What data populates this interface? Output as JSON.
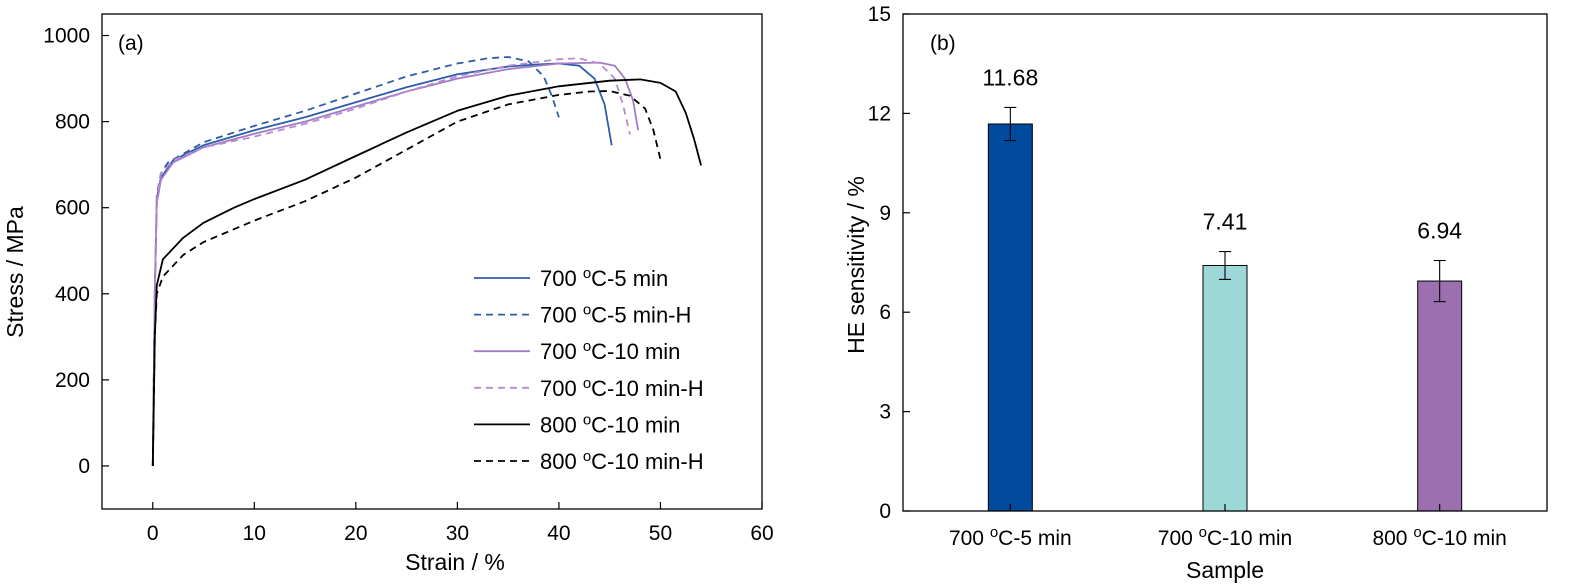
{
  "chart_data": [
    {
      "type": "line",
      "panel_label": "(a)",
      "xlabel": "Strain / %",
      "ylabel": "Stress / MPa",
      "xlim": [
        -5,
        60
      ],
      "ylim": [
        -100,
        1050
      ],
      "xticks": [
        "0",
        "10",
        "20",
        "30",
        "40",
        "50",
        "60"
      ],
      "yticks": [
        "0",
        "200",
        "400",
        "600",
        "800",
        "1000"
      ],
      "legend_position": "lower-right",
      "series": [
        {
          "name": "700 °C-5 min",
          "sup": "o",
          "pre": "700 ",
          "post": "C-5 min",
          "color": "#2e5ca8",
          "dash": "solid",
          "points": [
            [
              0,
              0
            ],
            [
              0.2,
              400
            ],
            [
              0.4,
              620
            ],
            [
              0.8,
              670
            ],
            [
              2,
              710
            ],
            [
              5,
              745
            ],
            [
              10,
              780
            ],
            [
              15,
              810
            ],
            [
              20,
              845
            ],
            [
              25,
              880
            ],
            [
              30,
              910
            ],
            [
              35,
              928
            ],
            [
              38,
              933
            ],
            [
              40,
              935
            ],
            [
              42,
              930
            ],
            [
              43.5,
              900
            ],
            [
              44.5,
              840
            ],
            [
              45.2,
              745
            ]
          ]
        },
        {
          "name": "700 °C-5 min-H",
          "sup": "o",
          "pre": "700 ",
          "post": "C-5 min-H",
          "color": "#2e5ca8",
          "dash": "dashed",
          "points": [
            [
              0,
              0
            ],
            [
              0.2,
              400
            ],
            [
              0.4,
              630
            ],
            [
              0.8,
              680
            ],
            [
              1.5,
              705
            ],
            [
              5,
              752
            ],
            [
              10,
              790
            ],
            [
              15,
              825
            ],
            [
              20,
              865
            ],
            [
              25,
              905
            ],
            [
              30,
              935
            ],
            [
              33,
              947
            ],
            [
              35,
              950
            ],
            [
              37,
              940
            ],
            [
              38.5,
              905
            ],
            [
              39.3,
              860
            ],
            [
              40,
              810
            ]
          ]
        },
        {
          "name": "700 °C-10 min",
          "sup": "o",
          "pre": "700 ",
          "post": "C-10 min",
          "color": "#a07cc5",
          "dash": "solid",
          "points": [
            [
              0,
              0
            ],
            [
              0.2,
              400
            ],
            [
              0.4,
              610
            ],
            [
              0.8,
              665
            ],
            [
              2,
              705
            ],
            [
              5,
              740
            ],
            [
              10,
              772
            ],
            [
              15,
              800
            ],
            [
              20,
              835
            ],
            [
              25,
              870
            ],
            [
              30,
              900
            ],
            [
              35,
              922
            ],
            [
              40,
              935
            ],
            [
              44,
              937
            ],
            [
              45.5,
              930
            ],
            [
              46.5,
              900
            ],
            [
              47.3,
              850
            ],
            [
              47.8,
              780
            ]
          ]
        },
        {
          "name": "700 °C-10 min-H",
          "sup": "o",
          "pre": "700 ",
          "post": "C-10 min-H",
          "color": "#b98ad4",
          "dash": "dashed",
          "points": [
            [
              0,
              0
            ],
            [
              0.2,
              400
            ],
            [
              0.4,
              620
            ],
            [
              0.8,
              680
            ],
            [
              2,
              710
            ],
            [
              5,
              740
            ],
            [
              10,
              765
            ],
            [
              15,
              795
            ],
            [
              20,
              830
            ],
            [
              25,
              870
            ],
            [
              30,
              905
            ],
            [
              35,
              930
            ],
            [
              40,
              945
            ],
            [
              42,
              947
            ],
            [
              44,
              935
            ],
            [
              45.5,
              900
            ],
            [
              46.3,
              840
            ],
            [
              47,
              770
            ]
          ]
        },
        {
          "name": "800 °C-10 min",
          "sup": "o",
          "pre": "800 ",
          "post": "C-10 min",
          "color": "#000000",
          "dash": "solid",
          "points": [
            [
              0,
              0
            ],
            [
              0.2,
              300
            ],
            [
              0.4,
              420
            ],
            [
              1,
              480
            ],
            [
              3,
              530
            ],
            [
              5,
              565
            ],
            [
              8,
              600
            ],
            [
              10,
              620
            ],
            [
              15,
              665
            ],
            [
              20,
              720
            ],
            [
              25,
              775
            ],
            [
              30,
              825
            ],
            [
              35,
              860
            ],
            [
              40,
              882
            ],
            [
              45,
              895
            ],
            [
              48,
              898
            ],
            [
              50,
              890
            ],
            [
              51.5,
              870
            ],
            [
              52.5,
              820
            ],
            [
              53.3,
              760
            ],
            [
              54,
              698
            ]
          ]
        },
        {
          "name": "800 °C-10 min-H",
          "sup": "o",
          "pre": "800 ",
          "post": "C-10 min-H",
          "color": "#000000",
          "dash": "dashed",
          "points": [
            [
              0,
              0
            ],
            [
              0.2,
              300
            ],
            [
              0.4,
              400
            ],
            [
              1,
              440
            ],
            [
              3,
              490
            ],
            [
              5,
              520
            ],
            [
              10,
              570
            ],
            [
              15,
              615
            ],
            [
              20,
              670
            ],
            [
              25,
              735
            ],
            [
              30,
              800
            ],
            [
              35,
              840
            ],
            [
              40,
              862
            ],
            [
              43,
              870
            ],
            [
              45,
              871
            ],
            [
              47,
              860
            ],
            [
              48.5,
              830
            ],
            [
              49.3,
              780
            ],
            [
              50,
              712
            ]
          ]
        }
      ]
    },
    {
      "type": "bar",
      "panel_label": "(b)",
      "xlabel": "Sample",
      "ylabel": "HE sensitivity / %",
      "ylim": [
        0,
        15
      ],
      "yticks": [
        "0",
        "3",
        "6",
        "9",
        "12",
        "15"
      ],
      "categories": [
        {
          "label": "700 °C-5 min",
          "pre": "700 ",
          "sup": "o",
          "post": "C-5 min"
        },
        {
          "label": "700 °C-10 min",
          "pre": "700 ",
          "sup": "o",
          "post": "C-10 min"
        },
        {
          "label": "800 °C-10 min",
          "pre": "800 ",
          "sup": "o",
          "post": "C-10 min"
        }
      ],
      "values": [
        11.68,
        7.41,
        6.94
      ],
      "value_labels": [
        "11.68",
        "7.41",
        "6.94"
      ],
      "errors": [
        0.5,
        0.42,
        0.62
      ],
      "colors": [
        "#004b9e",
        "#9cd8d8",
        "#9c6faf"
      ]
    }
  ]
}
